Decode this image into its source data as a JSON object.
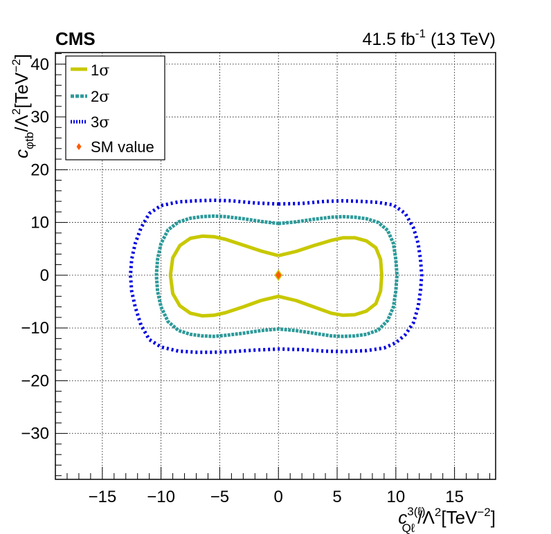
{
  "chart_data": {
    "type": "scatter",
    "experiment": "CMS",
    "lumi_label": "41.5 fb",
    "lumi_exponent": "-1",
    "energy_label": " (13 TeV)",
    "xlabel": {
      "symbol": "c",
      "sub": "Qℓ",
      "sup": "3(ℓ)",
      "rest": "/Λ",
      "rest_sup": "2",
      "unit": "[TeV",
      "unit_sup": "−2",
      "unit_end": "]"
    },
    "ylabel": {
      "symbol": "c",
      "sub": "φtb",
      "rest": "/Λ",
      "rest_sup": "2",
      "unit": "[TeV",
      "unit_sup": "−2",
      "unit_end": "]"
    },
    "xlim": [
      -19,
      18.5
    ],
    "ylim": [
      -38.7,
      42.2
    ],
    "x_ticks": [
      -15,
      -10,
      -5,
      0,
      5,
      10,
      15
    ],
    "x_tick_labels": [
      "−15",
      "−10",
      "−5",
      "0",
      "5",
      "10",
      "15"
    ],
    "y_ticks": [
      -30,
      -20,
      -10,
      0,
      10,
      20,
      30,
      40
    ],
    "y_tick_labels": [
      "−30",
      "−20",
      "−10",
      "0",
      "10",
      "20",
      "30",
      "40"
    ],
    "grid": true,
    "legend_position": "top-left",
    "contours": [
      {
        "name": "1σ",
        "legend_text": "1",
        "legend_sigma": "σ",
        "color": "#c8c800",
        "style": "solid",
        "points": [
          [
            0,
            3.7
          ],
          [
            1.5,
            4.5
          ],
          [
            3,
            5.6
          ],
          [
            4.5,
            6.6
          ],
          [
            5.5,
            7.1
          ],
          [
            6.5,
            7.1
          ],
          [
            7.5,
            6.5
          ],
          [
            8.3,
            5.2
          ],
          [
            8.7,
            3
          ],
          [
            8.8,
            0
          ],
          [
            8.7,
            -3
          ],
          [
            8.3,
            -5.4
          ],
          [
            7.5,
            -6.8
          ],
          [
            6.5,
            -7.5
          ],
          [
            5.5,
            -7.6
          ],
          [
            4.5,
            -7.2
          ],
          [
            3,
            -6
          ],
          [
            1.5,
            -4.8
          ],
          [
            0,
            -4
          ],
          [
            -1.5,
            -4.8
          ],
          [
            -3,
            -6
          ],
          [
            -4.5,
            -7.1
          ],
          [
            -5.5,
            -7.6
          ],
          [
            -6.5,
            -7.7
          ],
          [
            -7.5,
            -7.2
          ],
          [
            -8.4,
            -5.8
          ],
          [
            -9,
            -3.5
          ],
          [
            -9.2,
            0
          ],
          [
            -9,
            3.3
          ],
          [
            -8.4,
            5.6
          ],
          [
            -7.5,
            7
          ],
          [
            -6.5,
            7.4
          ],
          [
            -5.5,
            7.3
          ],
          [
            -4.5,
            6.8
          ],
          [
            -3,
            5.7
          ],
          [
            -1.5,
            4.6
          ],
          [
            0,
            3.7
          ]
        ]
      },
      {
        "name": "2σ",
        "legend_text": "2",
        "legend_sigma": "σ",
        "color": "#2e9a9a",
        "style": "dashed",
        "points": [
          [
            0,
            9.8
          ],
          [
            1.5,
            10.1
          ],
          [
            3,
            10.6
          ],
          [
            4.5,
            11
          ],
          [
            5.5,
            11.1
          ],
          [
            6.5,
            11
          ],
          [
            7.5,
            10.7
          ],
          [
            8.5,
            10
          ],
          [
            9.3,
            8.5
          ],
          [
            9.8,
            6
          ],
          [
            10,
            3
          ],
          [
            10.1,
            0
          ],
          [
            10,
            -3
          ],
          [
            9.8,
            -6
          ],
          [
            9.3,
            -8.6
          ],
          [
            8.5,
            -10.4
          ],
          [
            7.5,
            -11.2
          ],
          [
            6.5,
            -11.5
          ],
          [
            5.5,
            -11.6
          ],
          [
            4.5,
            -11.5
          ],
          [
            3,
            -11
          ],
          [
            1.5,
            -10.5
          ],
          [
            0,
            -10.2
          ],
          [
            -1.5,
            -10.5
          ],
          [
            -3,
            -11
          ],
          [
            -4.5,
            -11.4
          ],
          [
            -5.5,
            -11.6
          ],
          [
            -6.5,
            -11.5
          ],
          [
            -7.5,
            -11.2
          ],
          [
            -8.5,
            -10.5
          ],
          [
            -9.4,
            -8.8
          ],
          [
            -10,
            -6
          ],
          [
            -10.3,
            -3
          ],
          [
            -10.4,
            0
          ],
          [
            -10.3,
            3
          ],
          [
            -10,
            6
          ],
          [
            -9.4,
            8.6
          ],
          [
            -8.5,
            10.1
          ],
          [
            -7.5,
            10.8
          ],
          [
            -6.5,
            11.1
          ],
          [
            -5.5,
            11.2
          ],
          [
            -4.5,
            11.1
          ],
          [
            -3,
            10.7
          ],
          [
            -1.5,
            10.2
          ],
          [
            0,
            9.8
          ]
        ]
      },
      {
        "name": "3σ",
        "legend_text": "3",
        "legend_sigma": "σ",
        "color": "#0000e0",
        "style": "dotted",
        "points": [
          [
            0,
            13.5
          ],
          [
            2,
            13.6
          ],
          [
            4,
            14
          ],
          [
            5.5,
            14.1
          ],
          [
            7,
            14
          ],
          [
            8.5,
            13.8
          ],
          [
            9.8,
            13.3
          ],
          [
            10.8,
            11.7
          ],
          [
            11.5,
            9
          ],
          [
            11.9,
            6
          ],
          [
            12.1,
            3
          ],
          [
            12.2,
            0
          ],
          [
            12.1,
            -3
          ],
          [
            11.9,
            -6
          ],
          [
            11.5,
            -9
          ],
          [
            10.8,
            -11.3
          ],
          [
            10,
            -12.8
          ],
          [
            9,
            -13.8
          ],
          [
            7.5,
            -14.3
          ],
          [
            5.5,
            -14.5
          ],
          [
            4,
            -14.4
          ],
          [
            2,
            -14.1
          ],
          [
            0,
            -14
          ],
          [
            -2,
            -14.2
          ],
          [
            -4,
            -14.5
          ],
          [
            -5.5,
            -14.6
          ],
          [
            -7,
            -14.6
          ],
          [
            -8.5,
            -14.4
          ],
          [
            -10,
            -13.6
          ],
          [
            -11,
            -12.2
          ],
          [
            -11.7,
            -9.5
          ],
          [
            -12.2,
            -6
          ],
          [
            -12.5,
            -3
          ],
          [
            -12.6,
            0
          ],
          [
            -12.5,
            3
          ],
          [
            -12.2,
            6
          ],
          [
            -11.7,
            9
          ],
          [
            -11,
            11.7
          ],
          [
            -10,
            13.2
          ],
          [
            -8.5,
            13.9
          ],
          [
            -7,
            14.1
          ],
          [
            -5.5,
            14.2
          ],
          [
            -4,
            14.1
          ],
          [
            -2,
            13.7
          ],
          [
            0,
            13.5
          ]
        ]
      }
    ],
    "sm_value": {
      "name": "SM value",
      "x": 0,
      "y": 0,
      "color": "#ff5a00",
      "edge_color": "#c8c800"
    }
  }
}
